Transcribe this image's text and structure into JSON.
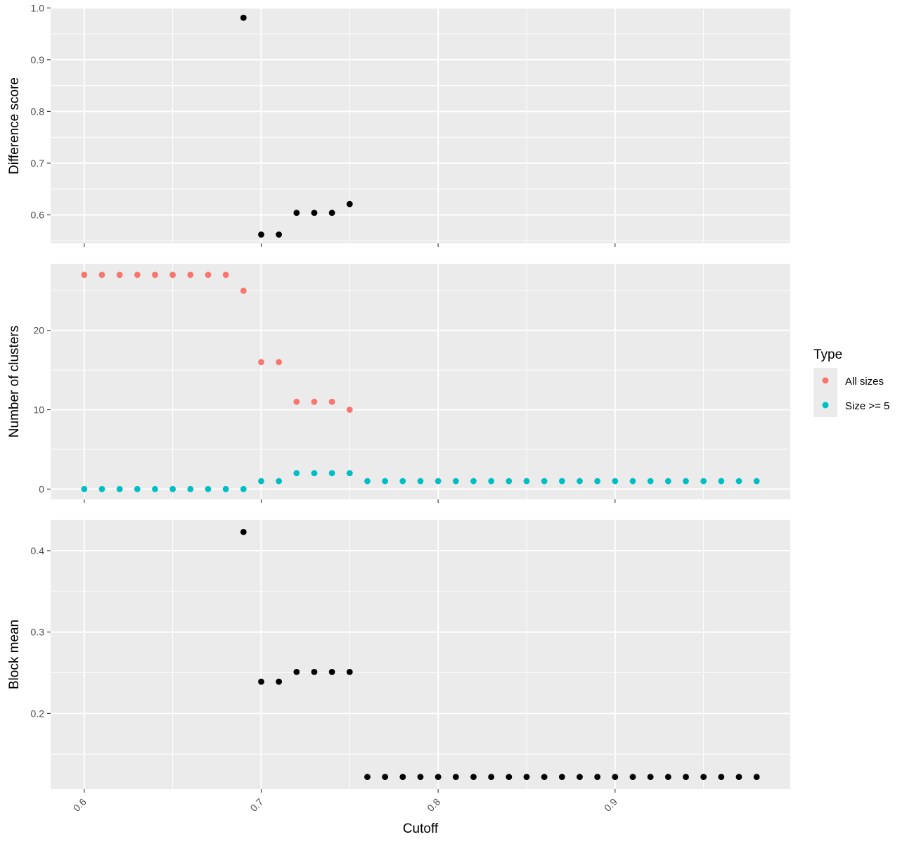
{
  "chart_data": {
    "type": "scatter",
    "xlabel": "Cutoff",
    "xlim": [
      0.581,
      0.999
    ],
    "x_ticks": [
      0.6,
      0.7,
      0.8,
      0.9
    ],
    "x_tick_labels": [
      "0.6",
      "0.7",
      "0.8",
      "0.9"
    ],
    "grid": true,
    "colors": {
      "panel_bg": "#ebebeb",
      "grid": "#ffffff",
      "black": "#000000",
      "all_sizes": "#f8766d",
      "size_ge_5": "#00bfc4"
    },
    "legend": {
      "title": "Type",
      "position": "right",
      "entries": [
        {
          "label": "All sizes",
          "color": "#f8766d"
        },
        {
          "label": "Size >= 5",
          "color": "#00bfc4"
        }
      ]
    },
    "panels": [
      {
        "ylabel": "Difference score",
        "ylim": [
          0.545,
          0.999
        ],
        "y_ticks": [
          0.6,
          0.7,
          0.8,
          0.9,
          1.0
        ],
        "y_tick_labels": [
          "0.6",
          "0.7",
          "0.8",
          "0.9",
          "1.0"
        ],
        "series": [
          {
            "color": "#000000",
            "x": [
              0.69,
              0.7,
              0.71,
              0.72,
              0.73,
              0.74,
              0.75
            ],
            "y": [
              0.981,
              0.562,
              0.562,
              0.604,
              0.604,
              0.604,
              0.621
            ]
          }
        ]
      },
      {
        "ylabel": "Number of clusters",
        "ylim": [
          -1.3,
          28.4
        ],
        "y_ticks": [
          0,
          10,
          20
        ],
        "y_tick_labels": [
          "0",
          "10",
          "20"
        ],
        "series": [
          {
            "name": "All sizes",
            "color": "#f8766d",
            "x": [
              0.6,
              0.61,
              0.62,
              0.63,
              0.64,
              0.65,
              0.66,
              0.67,
              0.68,
              0.69,
              0.7,
              0.71,
              0.72,
              0.73,
              0.74,
              0.75
            ],
            "y": [
              27,
              27,
              27,
              27,
              27,
              27,
              27,
              27,
              27,
              25,
              16,
              16,
              11,
              11,
              11,
              10
            ]
          },
          {
            "name": "Size >= 5",
            "color": "#00bfc4",
            "x": [
              0.6,
              0.61,
              0.62,
              0.63,
              0.64,
              0.65,
              0.66,
              0.67,
              0.68,
              0.69,
              0.7,
              0.71,
              0.72,
              0.73,
              0.74,
              0.75,
              0.76,
              0.77,
              0.78,
              0.79,
              0.8,
              0.81,
              0.82,
              0.83,
              0.84,
              0.85,
              0.86,
              0.87,
              0.88,
              0.89,
              0.9,
              0.91,
              0.92,
              0.93,
              0.94,
              0.95,
              0.96,
              0.97,
              0.98
            ],
            "y": [
              0,
              0,
              0,
              0,
              0,
              0,
              0,
              0,
              0,
              0,
              1,
              1,
              2,
              2,
              2,
              2,
              1,
              1,
              1,
              1,
              1,
              1,
              1,
              1,
              1,
              1,
              1,
              1,
              1,
              1,
              1,
              1,
              1,
              1,
              1,
              1,
              1,
              1,
              1
            ]
          }
        ]
      },
      {
        "ylabel": "Block mean",
        "ylim": [
          0.107,
          0.438
        ],
        "y_ticks": [
          0.2,
          0.3,
          0.4
        ],
        "y_tick_labels": [
          "0.2",
          "0.3",
          "0.4"
        ],
        "series": [
          {
            "color": "#000000",
            "x": [
              0.69,
              0.7,
              0.71,
              0.72,
              0.73,
              0.74,
              0.75,
              0.76,
              0.77,
              0.78,
              0.79,
              0.8,
              0.81,
              0.82,
              0.83,
              0.84,
              0.85,
              0.86,
              0.87,
              0.88,
              0.89,
              0.9,
              0.91,
              0.92,
              0.93,
              0.94,
              0.95,
              0.96,
              0.97,
              0.98
            ],
            "y": [
              0.423,
              0.239,
              0.239,
              0.251,
              0.251,
              0.251,
              0.251,
              0.122,
              0.122,
              0.122,
              0.122,
              0.122,
              0.122,
              0.122,
              0.122,
              0.122,
              0.122,
              0.122,
              0.122,
              0.122,
              0.122,
              0.122,
              0.122,
              0.122,
              0.122,
              0.122,
              0.122,
              0.122,
              0.122,
              0.122
            ]
          }
        ]
      }
    ]
  }
}
